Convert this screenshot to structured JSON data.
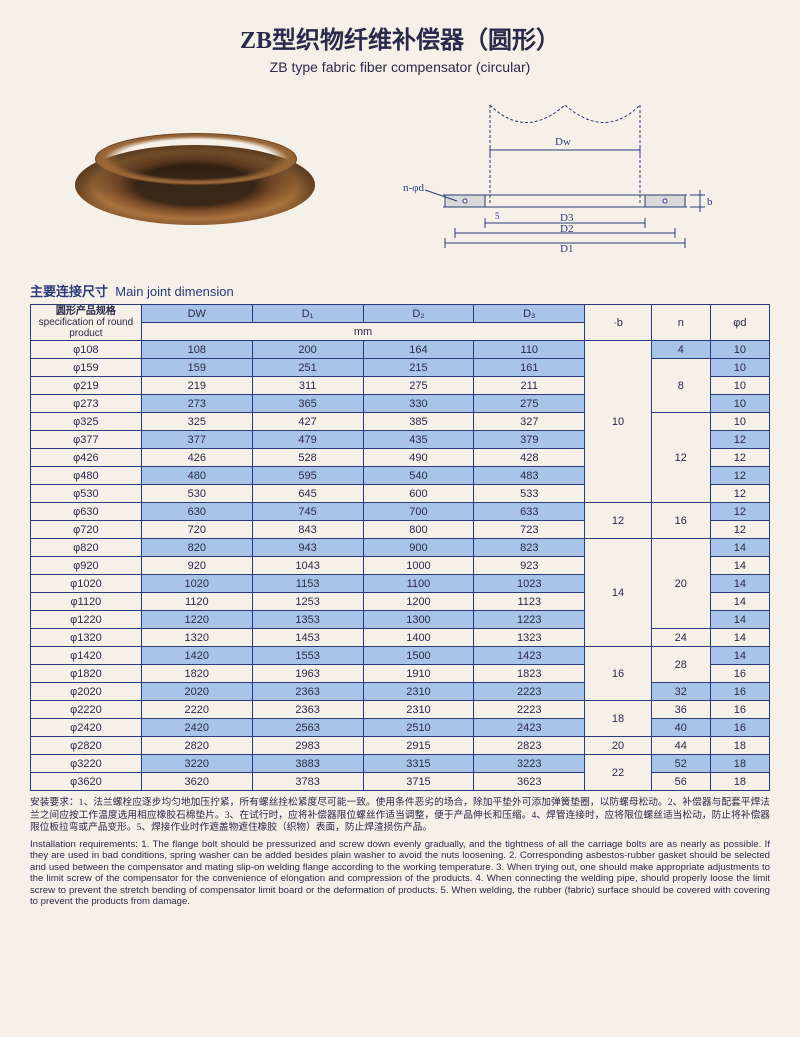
{
  "title_cn": "ZB型织物纤维补偿器（圆形）",
  "title_en": "ZB type fabric fiber compensator (circular)",
  "section_cn": "主要连接尺寸",
  "section_en": "Main joint dimension",
  "headers": {
    "spec_cn": "圆形产品规格",
    "spec_en": "specification of round product",
    "dw": "DW",
    "d1": "D₁",
    "d2": "D₂",
    "d3": "D₃",
    "b": "·b",
    "n": "n",
    "phid": "φd",
    "unit": "mm"
  },
  "diagram_labels": {
    "dw": "Dw",
    "nphid": "n-φd",
    "d3": "D3",
    "d2": "D2",
    "d1": "D1",
    "b": "b",
    "s": "5"
  },
  "rows": [
    {
      "spec": "φ108",
      "dw": "108",
      "d1": "200",
      "d2": "164",
      "d3": "110",
      "n": "4",
      "phid": "10",
      "blue": true
    },
    {
      "spec": "φ159",
      "dw": "159",
      "d1": "251",
      "d2": "215",
      "d3": "161",
      "phid": "10",
      "blue": true
    },
    {
      "spec": "φ219",
      "dw": "219",
      "d1": "311",
      "d2": "275",
      "d3": "211",
      "phid": "10",
      "blue": false
    },
    {
      "spec": "φ273",
      "dw": "273",
      "d1": "365",
      "d2": "330",
      "d3": "275",
      "phid": "10",
      "blue": true
    },
    {
      "spec": "φ325",
      "dw": "325",
      "d1": "427",
      "d2": "385",
      "d3": "327",
      "phid": "10",
      "blue": false
    },
    {
      "spec": "φ377",
      "dw": "377",
      "d1": "479",
      "d2": "435",
      "d3": "379",
      "phid": "12",
      "blue": true
    },
    {
      "spec": "φ426",
      "dw": "426",
      "d1": "528",
      "d2": "490",
      "d3": "428",
      "phid": "12",
      "blue": false
    },
    {
      "spec": "φ480",
      "dw": "480",
      "d1": "595",
      "d2": "540",
      "d3": "483",
      "phid": "12",
      "blue": true
    },
    {
      "spec": "φ530",
      "dw": "530",
      "d1": "645",
      "d2": "600",
      "d3": "533",
      "phid": "12",
      "blue": false
    },
    {
      "spec": "φ630",
      "dw": "630",
      "d1": "745",
      "d2": "700",
      "d3": "633",
      "phid": "12",
      "blue": true
    },
    {
      "spec": "φ720",
      "dw": "720",
      "d1": "843",
      "d2": "800",
      "d3": "723",
      "phid": "12",
      "blue": false
    },
    {
      "spec": "φ820",
      "dw": "820",
      "d1": "943",
      "d2": "900",
      "d3": "823",
      "phid": "14",
      "blue": true
    },
    {
      "spec": "φ920",
      "dw": "920",
      "d1": "1043",
      "d2": "1000",
      "d3": "923",
      "phid": "14",
      "blue": false
    },
    {
      "spec": "φ1020",
      "dw": "1020",
      "d1": "1153",
      "d2": "1100",
      "d3": "1023",
      "phid": "14",
      "blue": true
    },
    {
      "spec": "φ1120",
      "dw": "1120",
      "d1": "1253",
      "d2": "1200",
      "d3": "1123",
      "phid": "14",
      "blue": false
    },
    {
      "spec": "φ1220",
      "dw": "1220",
      "d1": "1353",
      "d2": "1300",
      "d3": "1223",
      "phid": "14",
      "blue": true
    },
    {
      "spec": "φ1320",
      "dw": "1320",
      "d1": "1453",
      "d2": "1400",
      "d3": "1323",
      "n": "24",
      "phid": "14",
      "blue": false
    },
    {
      "spec": "φ1420",
      "dw": "1420",
      "d1": "1553",
      "d2": "1500",
      "d3": "1423",
      "phid": "14",
      "blue": true
    },
    {
      "spec": "φ1820",
      "dw": "1820",
      "d1": "1963",
      "d2": "1910",
      "d3": "1823",
      "phid": "16",
      "blue": false
    },
    {
      "spec": "φ2020",
      "dw": "2020",
      "d1": "2363",
      "d2": "2310",
      "d3": "2223",
      "n": "32",
      "phid": "16",
      "blue": true
    },
    {
      "spec": "φ2220",
      "dw": "2220",
      "d1": "2363",
      "d2": "2310",
      "d3": "2223",
      "n": "36",
      "phid": "16",
      "blue": false
    },
    {
      "spec": "φ2420",
      "dw": "2420",
      "d1": "2563",
      "d2": "2510",
      "d3": "2423",
      "n": "40",
      "phid": "16",
      "blue": true
    },
    {
      "spec": "φ2820",
      "dw": "2820",
      "d1": "2983",
      "d2": "2915",
      "d3": "2823",
      "b": "20",
      "n": "44",
      "phid": "18",
      "blue": false
    },
    {
      "spec": "φ3220",
      "dw": "3220",
      "d1": "3883",
      "d2": "3315",
      "d3": "3223",
      "n": "52",
      "phid": "18",
      "blue": true
    },
    {
      "spec": "φ3620",
      "dw": "3620",
      "d1": "3783",
      "d2": "3715",
      "d3": "3623",
      "n": "56",
      "phid": "18",
      "blue": false
    }
  ],
  "b_spans": [
    {
      "start": 0,
      "span": 9,
      "val": "10"
    },
    {
      "start": 9,
      "span": 2,
      "val": "12"
    },
    {
      "start": 11,
      "span": 6,
      "val": "14"
    },
    {
      "start": 17,
      "span": 3,
      "val": "16"
    },
    {
      "start": 20,
      "span": 2,
      "val": "18"
    },
    {
      "start": 22,
      "span": 1,
      "val": "20"
    },
    {
      "start": 23,
      "span": 2,
      "val": "22"
    }
  ],
  "n_spans": [
    {
      "start": 0,
      "span": 1,
      "val": "4",
      "blue": true
    },
    {
      "start": 1,
      "span": 3,
      "val": "8"
    },
    {
      "start": 4,
      "span": 5,
      "val": "12"
    },
    {
      "start": 9,
      "span": 2,
      "val": "16"
    },
    {
      "start": 11,
      "span": 5,
      "val": "20"
    },
    {
      "start": 16,
      "span": 1,
      "val": "24"
    },
    {
      "start": 17,
      "span": 2,
      "val": "28"
    },
    {
      "start": 19,
      "span": 1,
      "val": "32",
      "blue": true
    },
    {
      "start": 20,
      "span": 1,
      "val": "36"
    },
    {
      "start": 21,
      "span": 1,
      "val": "40",
      "blue": true
    },
    {
      "start": 22,
      "span": 1,
      "val": "44"
    },
    {
      "start": 23,
      "span": 1,
      "val": "52",
      "blue": true
    },
    {
      "start": 24,
      "span": 1,
      "val": "56"
    }
  ],
  "notes_cn": "安装要求：1、法兰螺栓应逐步均匀地加压拧紧，所有螺丝拴松紧度尽可能一致。使用条件恶劣的场合，除加平垫外可添加弹簧垫圈，以防螺母松动。2、补偿器与配套平焊法兰之间应按工作温度选用相应橡胶石棉垫片。3、在试行时，应将补偿器限位螺丝作适当调整，便于产品伸长和压缩。4、焊管连接时，应将限位螺丝适当松动，防止将补偿器限位板拉弯或产品变形。5、焊接作业时作遮盖物遮住橡胶（织物）表面，防止焊渣损伤产品。",
  "notes_en": "Installation requirements: 1. The flange bolt should be pressurized and screw down evenly gradually, and the tightness of all the carriage bolts are as nearly as possible. If they are used in bad conditions, spring washer can be added besides plain washer to avoid the nuts loosening. 2. Corresponding asbestos-rubber gasket should be selected and used between the compensator and mating slip-on welding flange according to the working temperature. 3. When trying out, one should make appropriate adjustments to the limit screw of the compensator for the convenience of elongation and compression of the products. 4. When connecting the welding pipe, should properly loose the limit screw to prevent the stretch bending of compensator limit board or the deformation of products. 5. When welding, the rubber (fabric) surface should be covered with covering to prevent the products from damage."
}
